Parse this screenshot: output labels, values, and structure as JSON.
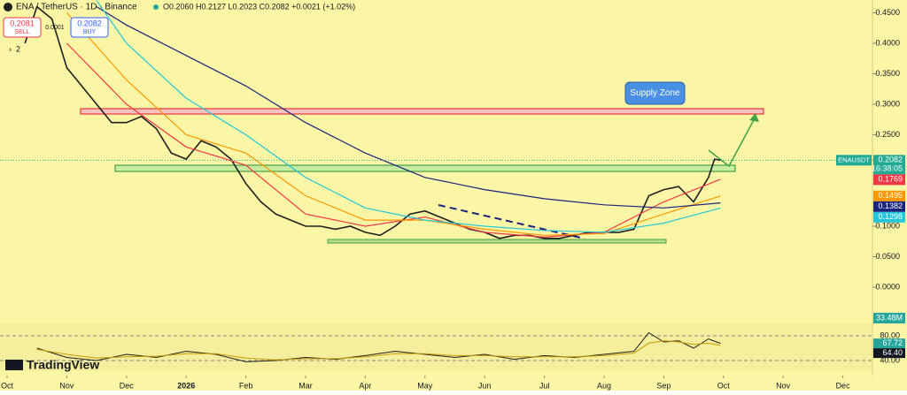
{
  "header": {
    "symbol": "ENA / TetherUS · 1D · Binance",
    "ohlc": "O0.2060 H0.2127 L0.2023 C0.2082 +0.0021 (+1.02%)",
    "sell_price": "0.2081",
    "sell": "SELL",
    "spread": "0.0001",
    "buy_price": "0.2082",
    "buy": "BUY",
    "indicator_count": "2"
  },
  "brand": "TradingView",
  "chart_data": {
    "type": "line",
    "annotation": "Supply Zone",
    "symbol_label": "ENAUSDT",
    "countdown": "16:38:05",
    "volume_label": "33.48M",
    "xlim": [
      -0.119,
      14.496
    ],
    "xticks": [
      {
        "value": 0,
        "label": "Oct"
      },
      {
        "value": 1,
        "label": "Nov"
      },
      {
        "value": 2,
        "label": "Dec"
      },
      {
        "value": 3,
        "label": "2026"
      },
      {
        "value": 4,
        "label": "Feb"
      },
      {
        "value": 5,
        "label": "Mar"
      },
      {
        "value": 6,
        "label": "Apr"
      },
      {
        "value": 7,
        "label": "May"
      },
      {
        "value": 8,
        "label": "Jun"
      },
      {
        "value": 9,
        "label": "Jul"
      },
      {
        "value": 10,
        "label": "Aug"
      },
      {
        "value": 11,
        "label": "Sep"
      },
      {
        "value": 12,
        "label": "Oct"
      },
      {
        "value": 13,
        "label": "Nov"
      },
      {
        "value": 14,
        "label": "Dec"
      }
    ],
    "ylim": [
      -0.058,
      0.471
    ],
    "yticks": [
      {
        "value": 0.45,
        "label": "0.4500"
      },
      {
        "value": 0.4,
        "label": "0.4000"
      },
      {
        "value": 0.35,
        "label": "0.3500"
      },
      {
        "value": 0.3,
        "label": "0.3000"
      },
      {
        "value": 0.25,
        "label": "0.2500"
      },
      {
        "value": 0.1,
        "label": "0.1000"
      },
      {
        "value": 0.05,
        "label": "0.0500"
      },
      {
        "value": 0,
        "label": "0.0000"
      }
    ],
    "series": [
      {
        "color": "#1f1f1f",
        "x": [
          0.3,
          0.5,
          0.75,
          1.0,
          1.25,
          1.5,
          1.75,
          2.0,
          2.25,
          2.5,
          2.75,
          3.0,
          3.25,
          3.5,
          3.75,
          4.0,
          4.25,
          4.5,
          4.75,
          5.0,
          5.25,
          5.5,
          5.75,
          6.0,
          6.25,
          6.5,
          6.75,
          7.0,
          7.25,
          7.5,
          7.75,
          8.0,
          8.25,
          8.5,
          8.75,
          9.0,
          9.25,
          9.5,
          9.75,
          10.0,
          10.25,
          10.5,
          10.75,
          11.0,
          11.25,
          11.5,
          11.75,
          11.85,
          11.95
        ],
        "values": [
          0.4,
          0.46,
          0.44,
          0.36,
          0.33,
          0.3,
          0.27,
          0.27,
          0.28,
          0.26,
          0.22,
          0.21,
          0.24,
          0.23,
          0.21,
          0.17,
          0.14,
          0.12,
          0.11,
          0.1,
          0.1,
          0.095,
          0.1,
          0.09,
          0.085,
          0.1,
          0.12,
          0.125,
          0.115,
          0.105,
          0.095,
          0.09,
          0.08,
          0.085,
          0.085,
          0.08,
          0.08,
          0.085,
          0.09,
          0.09,
          0.09,
          0.095,
          0.15,
          0.16,
          0.165,
          0.14,
          0.18,
          0.21,
          0.2082
        ]
      },
      {
        "color": "#f23645",
        "x": [
          1,
          2,
          3,
          4,
          5,
          6,
          7,
          8,
          9,
          10,
          11,
          11.95
        ],
        "values": [
          0.4,
          0.3,
          0.23,
          0.2,
          0.12,
          0.1,
          0.115,
          0.09,
          0.082,
          0.09,
          0.14,
          0.1769
        ]
      },
      {
        "color": "#ff9800",
        "x": [
          1,
          2,
          3,
          4,
          5,
          6,
          7,
          8,
          9,
          10,
          11,
          11.95
        ],
        "values": [
          0.45,
          0.34,
          0.25,
          0.22,
          0.15,
          0.11,
          0.11,
          0.095,
          0.085,
          0.088,
          0.12,
          0.1495
        ]
      },
      {
        "color": "#1a237e",
        "x": [
          1.5,
          2,
          3,
          4,
          5,
          6,
          7,
          8,
          9,
          10,
          11,
          11.95
        ],
        "values": [
          0.46,
          0.43,
          0.38,
          0.33,
          0.27,
          0.22,
          0.18,
          0.16,
          0.145,
          0.135,
          0.13,
          0.1382
        ]
      },
      {
        "color": "#26c6da",
        "x": [
          1.5,
          2,
          3,
          4,
          5,
          6,
          7,
          8,
          9,
          10,
          11,
          11.95
        ],
        "values": [
          0.47,
          0.4,
          0.31,
          0.25,
          0.18,
          0.13,
          0.11,
          0.1,
          0.093,
          0.09,
          0.105,
          0.1298
        ]
      }
    ],
    "rsi": {
      "ylim": [
        22.9,
        100
      ],
      "yticks": [
        {
          "value": 80,
          "label": "80.00"
        },
        {
          "value": 40,
          "label": "40.00"
        }
      ],
      "series": [
        {
          "color": "#1f1f1f",
          "x": [
            0.5,
            1,
            1.5,
            2,
            2.5,
            3,
            3.5,
            4,
            4.5,
            5,
            5.5,
            6,
            6.5,
            7,
            7.5,
            8,
            8.5,
            9,
            9.5,
            10,
            10.5,
            10.75,
            11,
            11.25,
            11.5,
            11.75,
            11.95
          ],
          "values": [
            60,
            45,
            40,
            50,
            45,
            55,
            50,
            38,
            40,
            45,
            42,
            48,
            55,
            50,
            45,
            50,
            42,
            48,
            45,
            50,
            55,
            85,
            70,
            72,
            60,
            75,
            67.72
          ]
        },
        {
          "color": "#c79a00",
          "x": [
            0.5,
            1,
            1.5,
            2,
            2.5,
            3,
            3.5,
            4,
            4.5,
            5,
            5.5,
            6,
            6.5,
            7,
            7.5,
            8,
            8.5,
            9,
            9.5,
            10,
            10.5,
            10.75,
            11,
            11.25,
            11.5,
            11.75,
            11.95
          ],
          "values": [
            58,
            50,
            44,
            46,
            47,
            51,
            51,
            44,
            41,
            43,
            43,
            46,
            51,
            51,
            48,
            48,
            46,
            46,
            46,
            48,
            52,
            68,
            72,
            70,
            66,
            68,
            64.4
          ],
          "value_labels": [
            null,
            null,
            null,
            null,
            null,
            null,
            null,
            null,
            null,
            null,
            null,
            null,
            null,
            null,
            null,
            null,
            null,
            null,
            null,
            null,
            null,
            null,
            null,
            null,
            null,
            null,
            "64.40"
          ]
        }
      ]
    }
  }
}
